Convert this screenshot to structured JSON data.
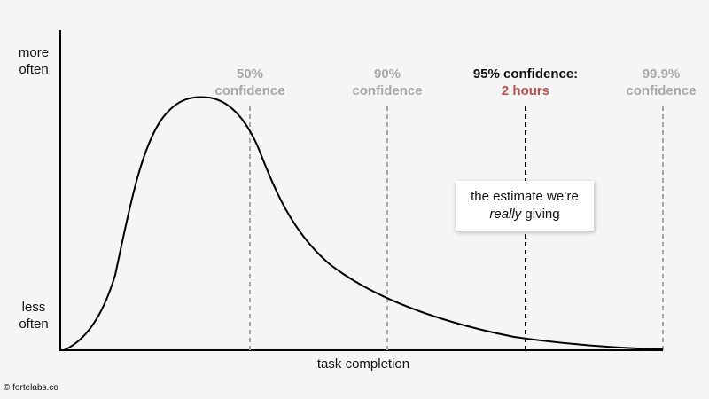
{
  "axis": {
    "y_top": "more\noften",
    "y_bottom": "less\noften",
    "x_label": "task completion"
  },
  "markers": [
    {
      "line1": "50%",
      "line2": "confidence",
      "color": "gray",
      "style": "dashed-gray"
    },
    {
      "line1": "90%",
      "line2": "confidence",
      "color": "gray",
      "style": "dashed-gray"
    },
    {
      "line1": "95% confidence:",
      "line2": "2 hours",
      "color": "emphasis",
      "style": "dashed-black"
    },
    {
      "line1": "99.9%",
      "line2": "confidence",
      "color": "gray",
      "style": "dashed-gray"
    }
  ],
  "callout": {
    "line1": "the estimate we’re",
    "line2_italic": "really",
    "line2_rest": " giving"
  },
  "credit": "© fortelabs.co",
  "colors": {
    "gray": "#a8a8a8",
    "emphasis_text": "#111111",
    "highlight": "#c0504d",
    "curve": "#000000"
  }
}
